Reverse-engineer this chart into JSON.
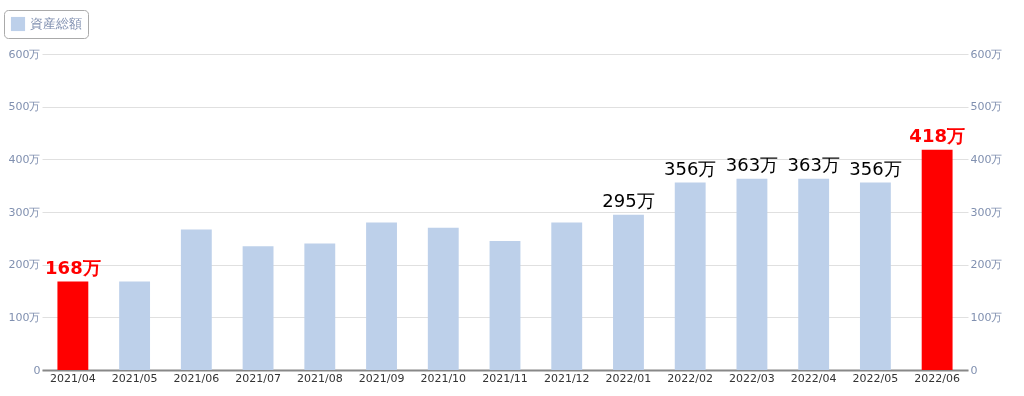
{
  "chart_data": {
    "type": "bar",
    "categories": [
      "2021/04",
      "2021/05",
      "2021/06",
      "2021/07",
      "2021/08",
      "2021/09",
      "2021/10",
      "2021/11",
      "2021/12",
      "2022/01",
      "2022/02",
      "2022/03",
      "2022/04",
      "2022/05",
      "2022/06"
    ],
    "series": [
      {
        "name": "資産総額",
        "color": "#bdd0ea",
        "values": [
          168,
          168,
          267,
          235,
          240,
          280,
          270,
          245,
          280,
          295,
          356,
          363,
          363,
          356,
          418
        ],
        "colors": [
          "#ff0000",
          "#bdd0ea",
          "#bdd0ea",
          "#bdd0ea",
          "#bdd0ea",
          "#bdd0ea",
          "#bdd0ea",
          "#bdd0ea",
          "#bdd0ea",
          "#bdd0ea",
          "#bdd0ea",
          "#bdd0ea",
          "#bdd0ea",
          "#bdd0ea",
          "#ff0000"
        ],
        "value_labels": [
          "168万",
          null,
          null,
          null,
          null,
          null,
          null,
          null,
          null,
          "295万",
          "356万",
          "363万",
          "363万",
          "356万",
          "418万"
        ]
      }
    ],
    "ylim": [
      0,
      600
    ],
    "yticks": [
      0,
      {
        "value": 100,
        "label": "100万"
      },
      {
        "value": 200,
        "label": "200万"
      },
      {
        "value": 300,
        "label": "300万"
      },
      {
        "value": 400,
        "label": "400万"
      },
      {
        "value": 500,
        "label": "500万"
      },
      {
        "value": 600,
        "label": "600万"
      }
    ],
    "y2lim": [
      0,
      600
    ],
    "y2ticks": [
      0,
      {
        "value": 100,
        "label": "100万"
      },
      {
        "value": 200,
        "label": "200万"
      },
      {
        "value": 300,
        "label": "300万"
      },
      {
        "value": 400,
        "label": "400万"
      },
      {
        "value": 500,
        "label": "500万"
      },
      {
        "value": 600,
        "label": "600万"
      }
    ],
    "grid": "y",
    "legend": "top left"
  }
}
